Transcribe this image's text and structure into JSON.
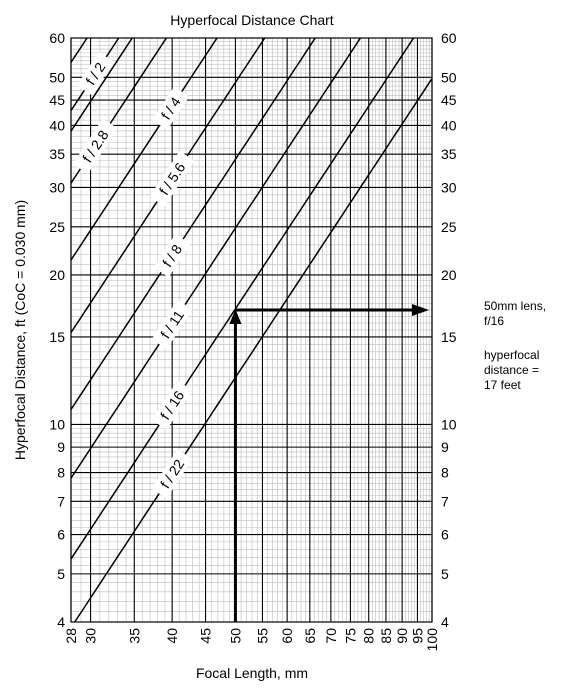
{
  "chart_data": {
    "type": "line",
    "title": "Hyperfocal Distance Chart",
    "xlabel": "Focal Length, mm",
    "ylabel": "Hyperfocal Distance, ft   (CoC = 0.030 mm)",
    "x_scale": "log",
    "y_scale": "log",
    "xlim": [
      28,
      100
    ],
    "ylim": [
      4,
      60
    ],
    "x_ticks": [
      28,
      30,
      35,
      40,
      45,
      50,
      55,
      60,
      65,
      70,
      75,
      80,
      85,
      90,
      95,
      100
    ],
    "y_ticks": [
      4,
      5,
      6,
      7,
      8,
      9,
      10,
      15,
      20,
      25,
      30,
      35,
      40,
      45,
      50,
      60
    ],
    "grid": true,
    "series": [
      {
        "name": "f / 2"
      },
      {
        "name": "f / 2.8"
      },
      {
        "name": "f / 4"
      },
      {
        "name": "f / 5.6"
      },
      {
        "name": "f / 8"
      },
      {
        "name": "f / 11"
      },
      {
        "name": "f / 16"
      },
      {
        "name": "f / 22"
      }
    ],
    "extra_labels": [
      {
        "text": "f / 16"
      },
      {
        "text": "f / 22"
      }
    ],
    "example": {
      "focal_length": 50,
      "f_number": 16,
      "hyperfocal": 17
    }
  },
  "annotation": {
    "line1": "50mm lens,",
    "line2": "f/16",
    "line3": "hyperfocal",
    "line4": "distance =",
    "line5": "17 feet"
  }
}
